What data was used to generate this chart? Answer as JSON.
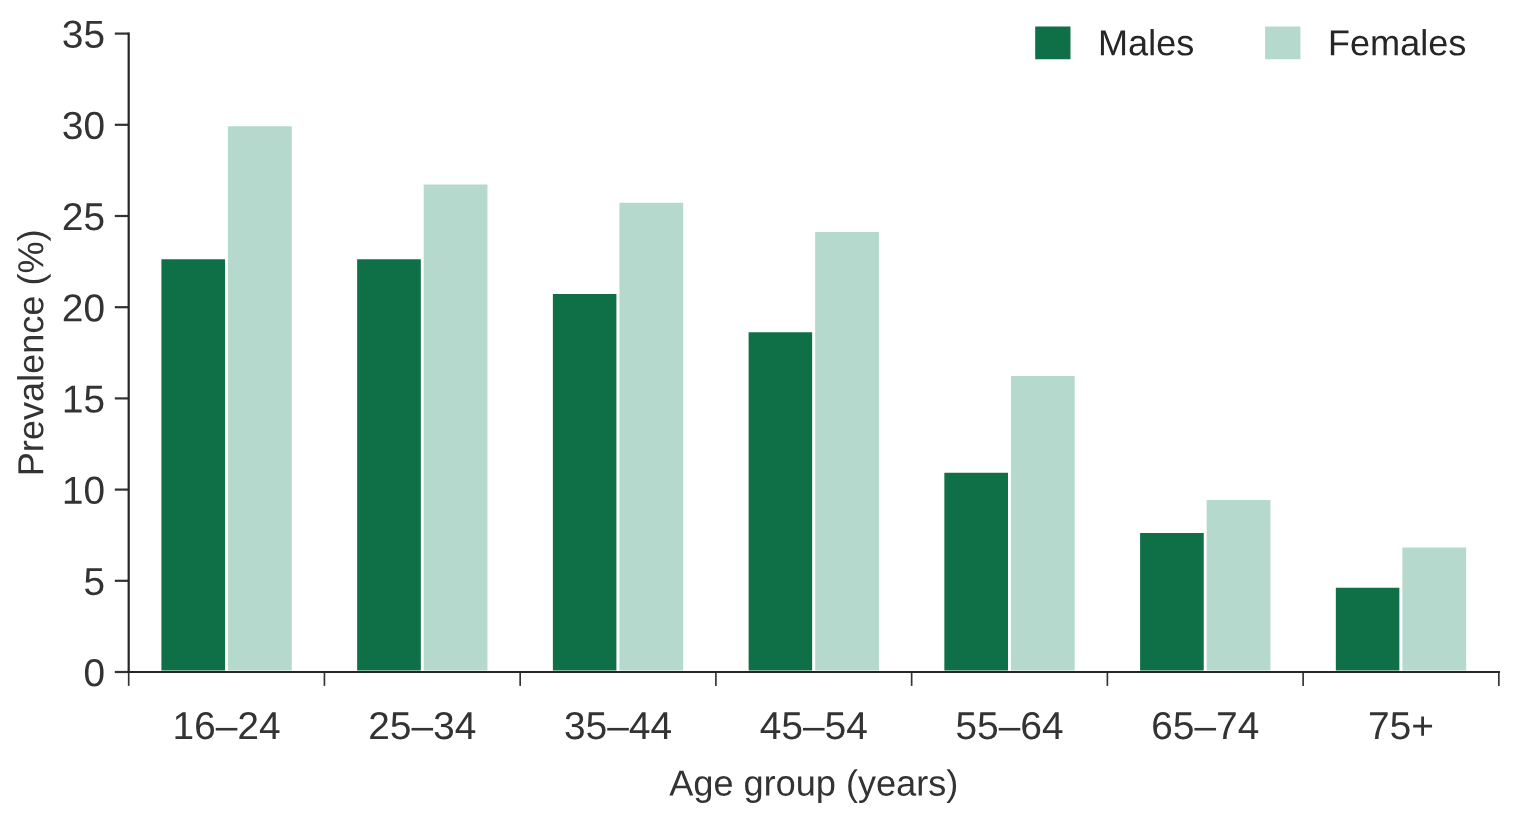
{
  "chart_data": {
    "type": "bar",
    "xlabel": "Age group (years)",
    "ylabel": "Prevalence (%)",
    "categories": [
      "16–24",
      "25–34",
      "35–44",
      "45–54",
      "55–64",
      "65–74",
      "75+"
    ],
    "series": [
      {
        "name": "Males",
        "color": "#0f7048",
        "values": [
          22.7,
          22.7,
          20.8,
          18.7,
          11.0,
          7.7,
          4.7
        ]
      },
      {
        "name": "Females",
        "color": "#b5d9cc",
        "values": [
          30.0,
          26.8,
          25.8,
          24.2,
          16.3,
          9.5,
          6.9
        ]
      }
    ],
    "ylim": [
      0,
      35
    ],
    "yticks": [
      0,
      5,
      10,
      15,
      20,
      25,
      30,
      35
    ],
    "grid": false,
    "legend": "top right"
  }
}
